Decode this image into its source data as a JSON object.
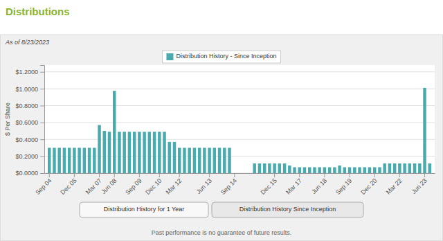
{
  "chart_data": {
    "type": "bar",
    "title": "Distributions",
    "subtitle": "As of 8/23/2023",
    "y_label": "$ Per Share",
    "annotations": [
      "Distribution History for 1 Year",
      "Distribution History Since Inception",
      "Past performance is no guarantee of future results."
    ],
    "categories": [
      "Sep 04",
      null,
      null,
      null,
      null,
      "Dec 05",
      null,
      null,
      null,
      null,
      "Mar 07",
      null,
      null,
      "Jun 08",
      null,
      null,
      null,
      null,
      "Sep 09",
      null,
      null,
      null,
      "Dec 10",
      null,
      null,
      null,
      "Mar 12",
      null,
      null,
      null,
      null,
      null,
      "Jun 13",
      null,
      null,
      null,
      null,
      "Sep 14",
      null,
      null,
      null,
      null,
      null,
      null,
      null,
      "Dec 15",
      null,
      null,
      null,
      null,
      "Mar 17",
      null,
      null,
      null,
      null,
      "Jun 18",
      null,
      null,
      null,
      null,
      "Sep 19",
      null,
      null,
      null,
      null,
      "Dec 20",
      null,
      null,
      null,
      null,
      "Mar 22",
      null,
      null,
      null,
      null,
      "Jun 23",
      null
    ],
    "series": [
      {
        "name": "Distribution History - Since Inception",
        "color": "#4aabaf",
        "values": [
          0.3,
          0.3,
          0.3,
          0.3,
          0.3,
          0.3,
          0.3,
          0.3,
          0.3,
          0.3,
          0.57,
          0.5,
          0.49,
          0.975,
          0.49,
          0.49,
          0.49,
          0.49,
          0.49,
          0.49,
          0.49,
          0.49,
          0.49,
          0.49,
          0.37,
          0.37,
          0.3,
          0.3,
          0.3,
          0.3,
          0.3,
          0.3,
          0.3,
          0.3,
          0.3,
          0.3,
          0.3,
          0.0,
          0.0,
          0.0,
          0.0,
          0.115,
          0.115,
          0.115,
          0.115,
          0.115,
          0.115,
          0.115,
          0.09,
          0.07,
          0.07,
          0.07,
          0.07,
          0.07,
          0.07,
          0.07,
          0.07,
          0.07,
          0.09,
          0.07,
          0.07,
          0.07,
          0.07,
          0.07,
          0.07,
          0.07,
          0.07,
          0.115,
          0.115,
          0.115,
          0.115,
          0.115,
          0.115,
          0.115,
          0.115,
          1.01,
          0.115
        ]
      }
    ],
    "ylim": [
      0,
      1.28
    ],
    "yticks": [
      {
        "value": 0.0,
        "label": "$0.0000"
      },
      {
        "value": 0.2,
        "label": "$0.2000"
      },
      {
        "value": 0.4,
        "label": "$0.4000"
      },
      {
        "value": 0.6,
        "label": "$0.6000"
      },
      {
        "value": 0.8,
        "label": "$0.8000"
      },
      {
        "value": 1.0,
        "label": "$1.0000"
      },
      {
        "value": 1.2,
        "label": "$1.2000"
      }
    ],
    "grid": true,
    "legend": "top"
  }
}
